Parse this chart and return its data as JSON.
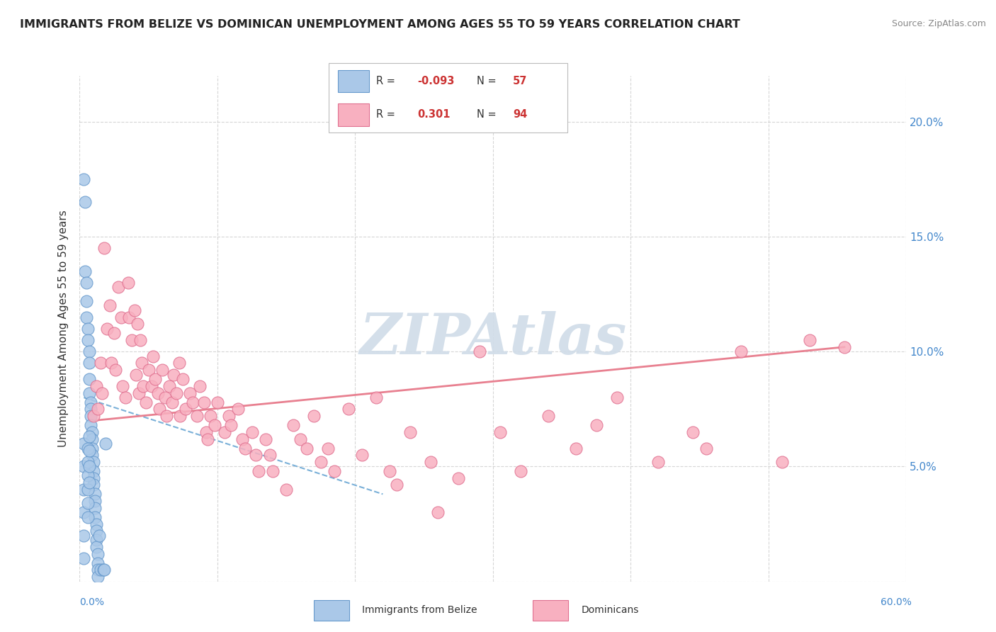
{
  "title": "IMMIGRANTS FROM BELIZE VS DOMINICAN UNEMPLOYMENT AMONG AGES 55 TO 59 YEARS CORRELATION CHART",
  "source": "Source: ZipAtlas.com",
  "ylabel": "Unemployment Among Ages 55 to 59 years",
  "xlim": [
    0.0,
    0.6
  ],
  "ylim": [
    0.0,
    0.22
  ],
  "yticks": [
    0.0,
    0.05,
    0.1,
    0.15,
    0.2
  ],
  "ytick_labels_right": [
    "",
    "5.0%",
    "10.0%",
    "15.0%",
    "20.0%"
  ],
  "belize_color": "#aac8e8",
  "belize_edge": "#6699cc",
  "dominican_color": "#f8b0c0",
  "dominican_edge": "#e07090",
  "belize_trend_color": "#7ab0d8",
  "dominican_trend_color": "#e88090",
  "watermark_color": "#d0dce8",
  "belize_scatter": [
    [
      0.003,
      0.175
    ],
    [
      0.004,
      0.165
    ],
    [
      0.004,
      0.135
    ],
    [
      0.005,
      0.13
    ],
    [
      0.005,
      0.122
    ],
    [
      0.005,
      0.115
    ],
    [
      0.006,
      0.11
    ],
    [
      0.006,
      0.105
    ],
    [
      0.007,
      0.1
    ],
    [
      0.007,
      0.095
    ],
    [
      0.007,
      0.088
    ],
    [
      0.007,
      0.082
    ],
    [
      0.008,
      0.078
    ],
    [
      0.008,
      0.075
    ],
    [
      0.008,
      0.072
    ],
    [
      0.008,
      0.068
    ],
    [
      0.009,
      0.065
    ],
    [
      0.009,
      0.062
    ],
    [
      0.009,
      0.058
    ],
    [
      0.009,
      0.055
    ],
    [
      0.01,
      0.052
    ],
    [
      0.01,
      0.048
    ],
    [
      0.01,
      0.045
    ],
    [
      0.01,
      0.042
    ],
    [
      0.011,
      0.038
    ],
    [
      0.011,
      0.035
    ],
    [
      0.011,
      0.032
    ],
    [
      0.011,
      0.028
    ],
    [
      0.012,
      0.025
    ],
    [
      0.012,
      0.022
    ],
    [
      0.012,
      0.018
    ],
    [
      0.012,
      0.015
    ],
    [
      0.013,
      0.012
    ],
    [
      0.013,
      0.008
    ],
    [
      0.013,
      0.005
    ],
    [
      0.013,
      0.002
    ],
    [
      0.003,
      0.06
    ],
    [
      0.003,
      0.05
    ],
    [
      0.003,
      0.04
    ],
    [
      0.003,
      0.03
    ],
    [
      0.003,
      0.02
    ],
    [
      0.003,
      0.01
    ],
    [
      0.006,
      0.058
    ],
    [
      0.006,
      0.052
    ],
    [
      0.006,
      0.046
    ],
    [
      0.006,
      0.04
    ],
    [
      0.006,
      0.034
    ],
    [
      0.006,
      0.028
    ],
    [
      0.007,
      0.063
    ],
    [
      0.007,
      0.057
    ],
    [
      0.007,
      0.05
    ],
    [
      0.007,
      0.043
    ],
    [
      0.014,
      0.02
    ],
    [
      0.015,
      0.005
    ],
    [
      0.017,
      0.005
    ],
    [
      0.018,
      0.005
    ],
    [
      0.019,
      0.06
    ]
  ],
  "dominican_scatter": [
    [
      0.01,
      0.072
    ],
    [
      0.012,
      0.085
    ],
    [
      0.013,
      0.075
    ],
    [
      0.015,
      0.095
    ],
    [
      0.016,
      0.082
    ],
    [
      0.018,
      0.145
    ],
    [
      0.02,
      0.11
    ],
    [
      0.022,
      0.12
    ],
    [
      0.023,
      0.095
    ],
    [
      0.025,
      0.108
    ],
    [
      0.026,
      0.092
    ],
    [
      0.028,
      0.128
    ],
    [
      0.03,
      0.115
    ],
    [
      0.031,
      0.085
    ],
    [
      0.033,
      0.08
    ],
    [
      0.035,
      0.13
    ],
    [
      0.036,
      0.115
    ],
    [
      0.038,
      0.105
    ],
    [
      0.04,
      0.118
    ],
    [
      0.041,
      0.09
    ],
    [
      0.042,
      0.112
    ],
    [
      0.043,
      0.082
    ],
    [
      0.044,
      0.105
    ],
    [
      0.045,
      0.095
    ],
    [
      0.046,
      0.085
    ],
    [
      0.048,
      0.078
    ],
    [
      0.05,
      0.092
    ],
    [
      0.052,
      0.085
    ],
    [
      0.053,
      0.098
    ],
    [
      0.055,
      0.088
    ],
    [
      0.057,
      0.082
    ],
    [
      0.058,
      0.075
    ],
    [
      0.06,
      0.092
    ],
    [
      0.062,
      0.08
    ],
    [
      0.063,
      0.072
    ],
    [
      0.065,
      0.085
    ],
    [
      0.067,
      0.078
    ],
    [
      0.068,
      0.09
    ],
    [
      0.07,
      0.082
    ],
    [
      0.072,
      0.095
    ],
    [
      0.073,
      0.072
    ],
    [
      0.075,
      0.088
    ],
    [
      0.077,
      0.075
    ],
    [
      0.08,
      0.082
    ],
    [
      0.082,
      0.078
    ],
    [
      0.085,
      0.072
    ],
    [
      0.087,
      0.085
    ],
    [
      0.09,
      0.078
    ],
    [
      0.092,
      0.065
    ],
    [
      0.093,
      0.062
    ],
    [
      0.095,
      0.072
    ],
    [
      0.098,
      0.068
    ],
    [
      0.1,
      0.078
    ],
    [
      0.105,
      0.065
    ],
    [
      0.108,
      0.072
    ],
    [
      0.11,
      0.068
    ],
    [
      0.115,
      0.075
    ],
    [
      0.118,
      0.062
    ],
    [
      0.12,
      0.058
    ],
    [
      0.125,
      0.065
    ],
    [
      0.128,
      0.055
    ],
    [
      0.13,
      0.048
    ],
    [
      0.135,
      0.062
    ],
    [
      0.138,
      0.055
    ],
    [
      0.14,
      0.048
    ],
    [
      0.15,
      0.04
    ],
    [
      0.155,
      0.068
    ],
    [
      0.16,
      0.062
    ],
    [
      0.165,
      0.058
    ],
    [
      0.17,
      0.072
    ],
    [
      0.175,
      0.052
    ],
    [
      0.18,
      0.058
    ],
    [
      0.185,
      0.048
    ],
    [
      0.195,
      0.075
    ],
    [
      0.205,
      0.055
    ],
    [
      0.215,
      0.08
    ],
    [
      0.225,
      0.048
    ],
    [
      0.23,
      0.042
    ],
    [
      0.24,
      0.065
    ],
    [
      0.255,
      0.052
    ],
    [
      0.26,
      0.03
    ],
    [
      0.275,
      0.045
    ],
    [
      0.29,
      0.1
    ],
    [
      0.305,
      0.065
    ],
    [
      0.32,
      0.048
    ],
    [
      0.34,
      0.072
    ],
    [
      0.36,
      0.058
    ],
    [
      0.375,
      0.068
    ],
    [
      0.39,
      0.08
    ],
    [
      0.42,
      0.052
    ],
    [
      0.445,
      0.065
    ],
    [
      0.455,
      0.058
    ],
    [
      0.48,
      0.1
    ],
    [
      0.51,
      0.052
    ],
    [
      0.53,
      0.105
    ],
    [
      0.555,
      0.102
    ]
  ],
  "belize_trend_x": [
    0.003,
    0.22
  ],
  "belize_trend_y": [
    0.08,
    0.038
  ],
  "dominican_trend_x": [
    0.01,
    0.555
  ],
  "dominican_trend_y": [
    0.07,
    0.102
  ]
}
